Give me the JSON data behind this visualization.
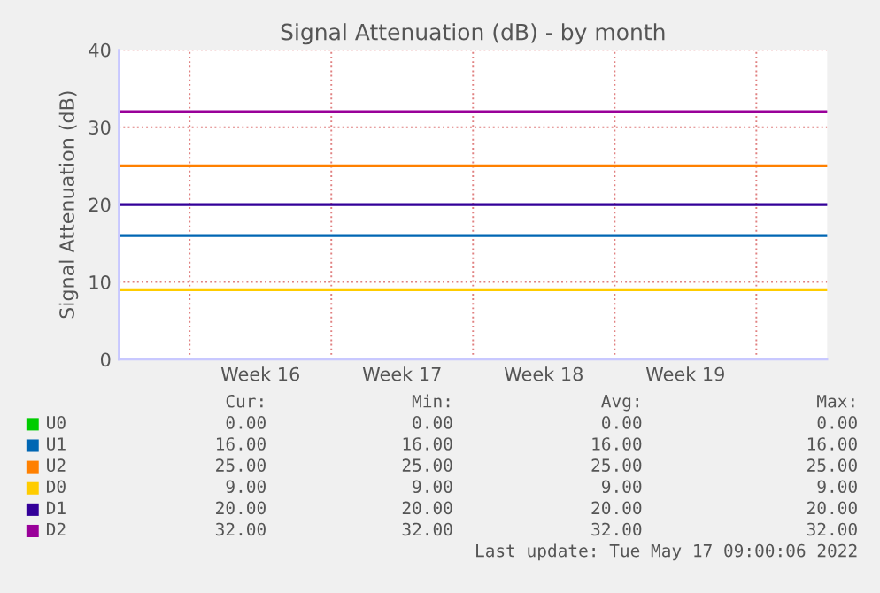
{
  "chart_data": {
    "type": "line",
    "title": "Signal Attenuation (dB) - by month",
    "ylabel": "Signal Attenuation (dB)",
    "categories": [
      null,
      "Week 16",
      "Week 17",
      "Week 18",
      "Week 19",
      null
    ],
    "series": [
      {
        "name": "U0",
        "color": "#00cc00",
        "values": [
          0,
          0,
          0,
          0,
          0,
          0
        ]
      },
      {
        "name": "U1",
        "color": "#0066b3",
        "values": [
          16,
          16,
          16,
          16,
          16,
          16
        ]
      },
      {
        "name": "U2",
        "color": "#ff8000",
        "values": [
          25,
          25,
          25,
          25,
          25,
          25
        ]
      },
      {
        "name": "D0",
        "color": "#ffcc00",
        "values": [
          9,
          9,
          9,
          9,
          9,
          9
        ]
      },
      {
        "name": "D1",
        "color": "#330099",
        "values": [
          20,
          20,
          20,
          20,
          20,
          20
        ]
      },
      {
        "name": "D2",
        "color": "#990099",
        "values": [
          32,
          32,
          32,
          32,
          32,
          32
        ]
      }
    ],
    "ylim": [
      0,
      40
    ],
    "yticks": [
      0,
      10,
      20,
      30,
      40
    ],
    "grid": true,
    "legend": "bottom",
    "marker": "none",
    "line_style": "solid",
    "annotations": [
      "Cur:",
      "Min:",
      "Avg:",
      "Max:",
      "0.00",
      "0.00",
      "0.00",
      "0.00",
      "16.00",
      "16.00",
      "16.00",
      "16.00",
      "25.00",
      "25.00",
      "25.00",
      "25.00",
      "9.00",
      "9.00",
      "9.00",
      "9.00",
      "20.00",
      "20.00",
      "20.00",
      "20.00",
      "32.00",
      "32.00",
      "32.00",
      "32.00",
      "Last update: Tue May 17 09:00:06 2022"
    ]
  }
}
